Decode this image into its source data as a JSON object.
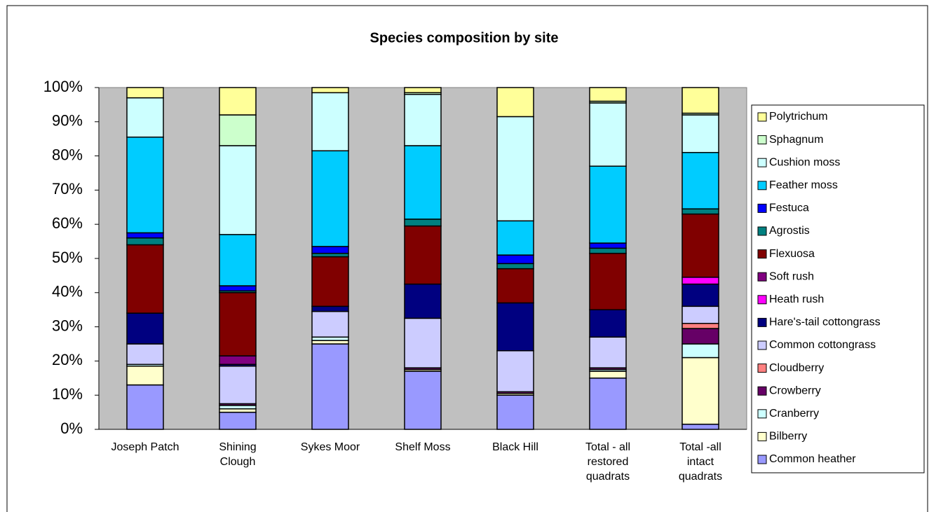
{
  "chart_data": {
    "type": "stacked_bar_percent",
    "title": "Species composition by site",
    "categories": [
      "Joseph Patch",
      "Shining Clough",
      "Sykes Moor",
      "Shelf Moss",
      "Black Hill",
      "Total - all restored quadrats",
      "Total -all intact quadrats"
    ],
    "series": [
      {
        "name": "Common heather",
        "color": "#9999ff",
        "values": [
          13,
          5,
          25,
          17,
          10,
          15,
          1.5
        ]
      },
      {
        "name": "Bilberry",
        "color": "#ffffcc",
        "values": [
          5.5,
          1,
          1,
          0.5,
          0.5,
          2,
          19.5
        ]
      },
      {
        "name": "Cranberry",
        "color": "#ccffff",
        "values": [
          0.5,
          1,
          1,
          0,
          0,
          0.5,
          4
        ]
      },
      {
        "name": "Crowberry",
        "color": "#660066",
        "values": [
          0,
          0.5,
          0,
          0.5,
          0.5,
          0.5,
          4.5
        ]
      },
      {
        "name": "Cloudberry",
        "color": "#ff8080",
        "values": [
          0,
          0,
          0,
          0,
          0,
          0,
          1.5
        ]
      },
      {
        "name": "Common cottongrass",
        "color": "#ccccff",
        "values": [
          6,
          11,
          7.5,
          14.5,
          12,
          9,
          5
        ]
      },
      {
        "name": "Hare's-tail cottongrass",
        "color": "#000080",
        "values": [
          9,
          0.5,
          1.5,
          10,
          14,
          8,
          6.5
        ]
      },
      {
        "name": "Heath rush",
        "color": "#ff00ff",
        "values": [
          0,
          0,
          0,
          0,
          0,
          0,
          2
        ]
      },
      {
        "name": "Soft rush",
        "color": "#800080",
        "values": [
          0,
          2.5,
          0,
          0,
          0,
          0,
          0
        ]
      },
      {
        "name": "Flexuosa",
        "color": "#800000",
        "values": [
          20,
          18.5,
          14.5,
          17,
          10,
          16.5,
          18.5
        ]
      },
      {
        "name": "Agrostis",
        "color": "#008080",
        "values": [
          2,
          0.5,
          1,
          2,
          1.5,
          1.5,
          1.5
        ]
      },
      {
        "name": "Festuca",
        "color": "#0000ff",
        "values": [
          1.5,
          1.5,
          2,
          0,
          2.5,
          1.5,
          0
        ]
      },
      {
        "name": "Feather moss",
        "color": "#00ccff",
        "values": [
          28,
          15,
          28,
          21.5,
          10,
          22.5,
          16.5
        ]
      },
      {
        "name": "Cushion moss",
        "color": "#ccffff",
        "values": [
          11.5,
          26,
          17,
          15,
          30.5,
          18.5,
          11
        ]
      },
      {
        "name": "Sphagnum",
        "color": "#ccffcc",
        "values": [
          0,
          9,
          0,
          0.5,
          0,
          0.5,
          0.5
        ]
      },
      {
        "name": "Polytrichum",
        "color": "#ffff99",
        "values": [
          3,
          8,
          1.5,
          1.5,
          8.5,
          4,
          7.5
        ]
      }
    ],
    "ylim": [
      0,
      100
    ],
    "yticks": [
      {
        "value": 0,
        "label": "0%"
      },
      {
        "value": 10,
        "label": "10%"
      },
      {
        "value": 20,
        "label": "20%"
      },
      {
        "value": 30,
        "label": "30%"
      },
      {
        "value": 40,
        "label": "40%"
      },
      {
        "value": 50,
        "label": "50%"
      },
      {
        "value": 60,
        "label": "60%"
      },
      {
        "value": 70,
        "label": "70%"
      },
      {
        "value": 80,
        "label": "80%"
      },
      {
        "value": 90,
        "label": "90%"
      },
      {
        "value": 100,
        "label": "100%"
      }
    ],
    "grid": false,
    "legend": "right"
  }
}
